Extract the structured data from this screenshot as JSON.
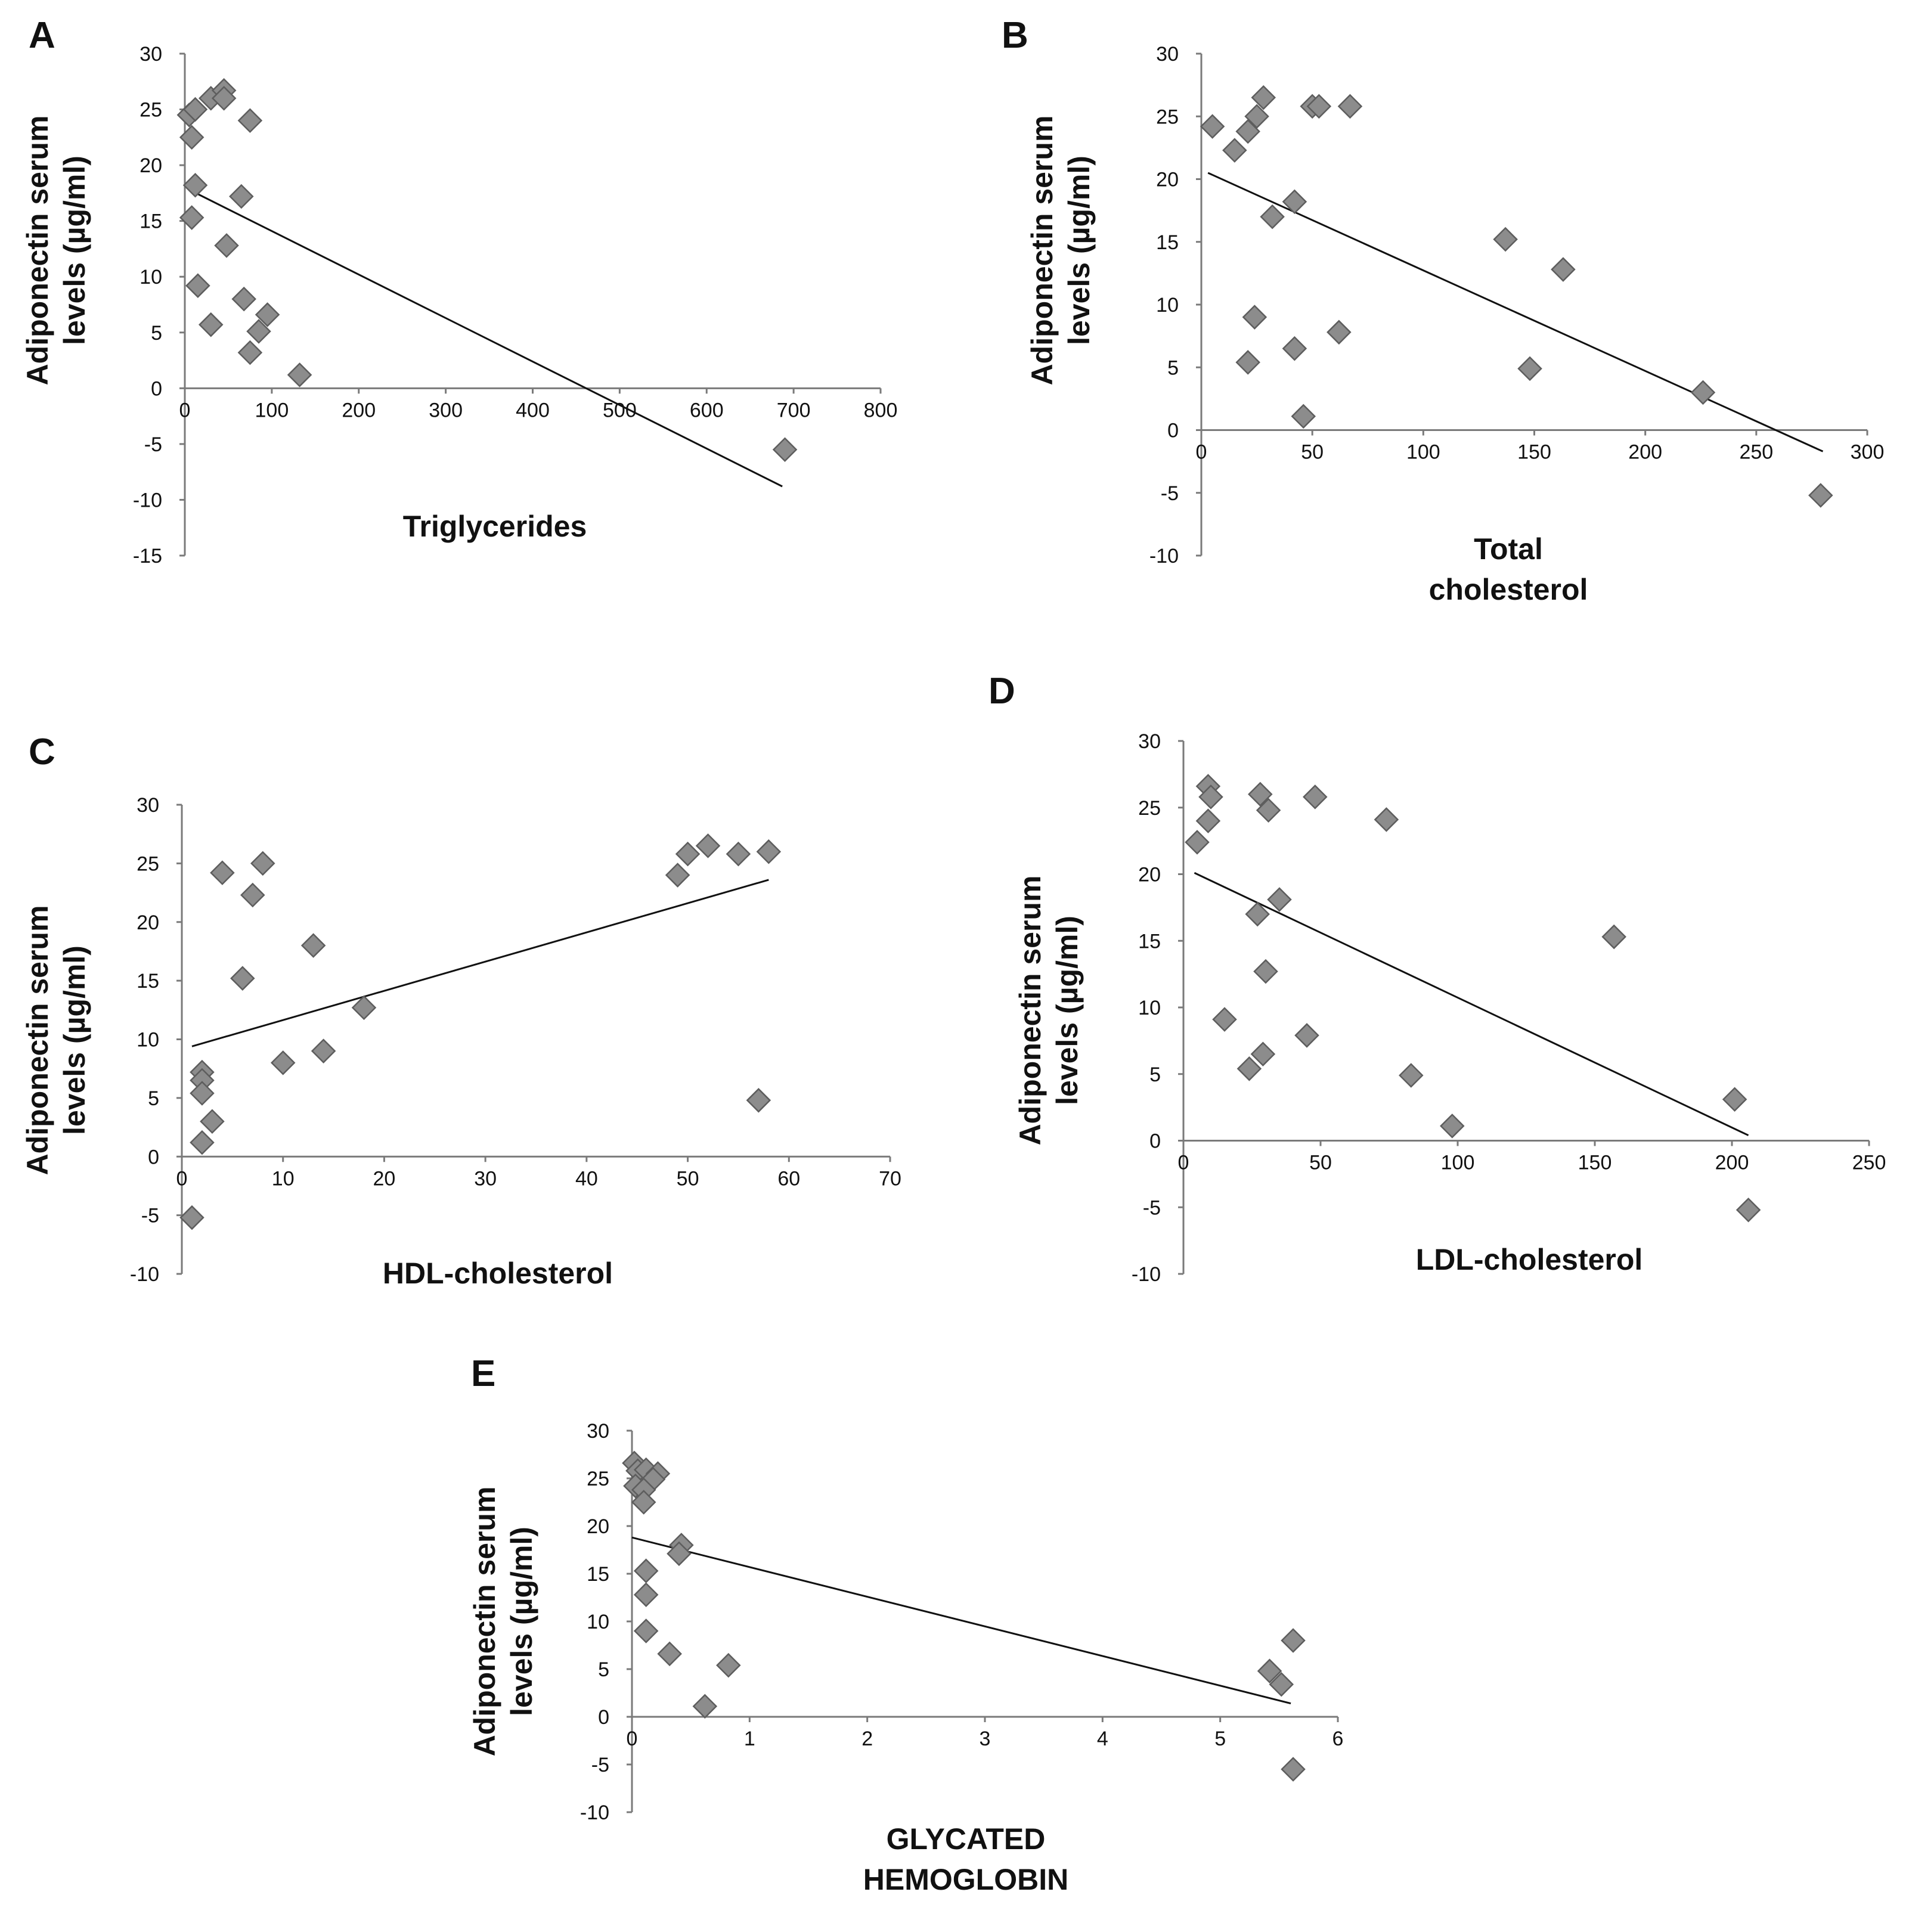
{
  "chart_data": [
    {
      "panel": "A",
      "type": "scatter",
      "title": "",
      "xlabel": [
        "Triglycerides"
      ],
      "ylabel": [
        "Adiponectin serum",
        "levels (µg/ml)"
      ],
      "xlim": [
        0,
        800
      ],
      "x_ticks": [
        0,
        100,
        200,
        300,
        400,
        500,
        600,
        700,
        800
      ],
      "ylim": [
        -15,
        30
      ],
      "y_ticks": [
        -15,
        -10,
        -5,
        0,
        5,
        10,
        15,
        20,
        25,
        30
      ],
      "points": [
        [
          5,
          24.5
        ],
        [
          12,
          25
        ],
        [
          30,
          26
        ],
        [
          45,
          26.7
        ],
        [
          45,
          26
        ],
        [
          75,
          24
        ],
        [
          8,
          22.5
        ],
        [
          12,
          18.2
        ],
        [
          65,
          17.2
        ],
        [
          8,
          15.3
        ],
        [
          48,
          12.8
        ],
        [
          15,
          9.2
        ],
        [
          68,
          8
        ],
        [
          95,
          6.6
        ],
        [
          30,
          5.7
        ],
        [
          85,
          5.1
        ],
        [
          75,
          3.2
        ],
        [
          132,
          1.2
        ],
        [
          690,
          -5.5
        ]
      ],
      "trendline": [
        [
          5,
          17.8
        ],
        [
          687,
          -8.8
        ]
      ],
      "point_color": "#8c8c8c"
    },
    {
      "panel": "B",
      "type": "scatter",
      "title": "",
      "xlabel": [
        "Total",
        "cholesterol"
      ],
      "ylabel": [
        "Adiponectin serum",
        "levels (µg/ml)"
      ],
      "xlim": [
        0,
        300
      ],
      "x_ticks": [
        0,
        50,
        100,
        150,
        200,
        250,
        300
      ],
      "ylim": [
        -10,
        30
      ],
      "y_ticks": [
        -10,
        -5,
        0,
        5,
        10,
        15,
        20,
        25,
        30
      ],
      "points": [
        [
          5,
          24.2
        ],
        [
          28,
          26.5
        ],
        [
          50,
          25.8
        ],
        [
          53,
          25.8
        ],
        [
          67,
          25.8
        ],
        [
          25,
          25
        ],
        [
          21,
          23.8
        ],
        [
          15,
          22.3
        ],
        [
          42,
          18.2
        ],
        [
          32,
          17
        ],
        [
          137,
          15.2
        ],
        [
          163,
          12.8
        ],
        [
          24,
          9
        ],
        [
          62,
          7.8
        ],
        [
          42,
          6.5
        ],
        [
          21,
          5.4
        ],
        [
          148,
          4.9
        ],
        [
          46,
          1.1
        ],
        [
          226,
          3
        ],
        [
          279,
          -5.2
        ]
      ],
      "trendline": [
        [
          3,
          20.5
        ],
        [
          280,
          -1.7
        ]
      ],
      "point_color": "#8c8c8c"
    },
    {
      "panel": "C",
      "type": "scatter",
      "title": "",
      "xlabel": [
        "HDL-cholesterol"
      ],
      "ylabel": [
        "Adiponectin serum",
        "levels (µg/ml)"
      ],
      "xlim": [
        0,
        70
      ],
      "x_ticks": [
        0,
        10,
        20,
        30,
        40,
        50,
        60,
        70
      ],
      "ylim": [
        -10,
        30
      ],
      "y_ticks": [
        -10,
        -5,
        0,
        5,
        10,
        15,
        20,
        25,
        30
      ],
      "points": [
        [
          4,
          24.2
        ],
        [
          8,
          25
        ],
        [
          7,
          22.3
        ],
        [
          13,
          18
        ],
        [
          6,
          15.2
        ],
        [
          18,
          12.7
        ],
        [
          14,
          9
        ],
        [
          10,
          8
        ],
        [
          2,
          7.2
        ],
        [
          2,
          6.5
        ],
        [
          2,
          5.4
        ],
        [
          3,
          3
        ],
        [
          2,
          1.2
        ],
        [
          1,
          -5.2
        ],
        [
          49,
          24
        ],
        [
          50,
          25.8
        ],
        [
          52,
          26.5
        ],
        [
          55,
          25.8
        ],
        [
          58,
          26
        ],
        [
          57,
          4.8
        ]
      ],
      "trendline": [
        [
          1,
          9.4
        ],
        [
          58,
          23.6
        ]
      ],
      "point_color": "#8c8c8c"
    },
    {
      "panel": "D",
      "type": "scatter",
      "title": "",
      "xlabel": [
        "LDL-cholesterol"
      ],
      "ylabel": [
        "Adiponectin serum",
        "levels (µg/ml)"
      ],
      "xlim": [
        0,
        250
      ],
      "x_ticks": [
        0,
        50,
        100,
        150,
        200,
        250
      ],
      "ylim": [
        -10,
        30
      ],
      "y_ticks": [
        -10,
        -5,
        0,
        5,
        10,
        15,
        20,
        25,
        30
      ],
      "points": [
        [
          9,
          26.6
        ],
        [
          10,
          25.8
        ],
        [
          28,
          26
        ],
        [
          31,
          24.8
        ],
        [
          48,
          25.8
        ],
        [
          74,
          24.1
        ],
        [
          9,
          24
        ],
        [
          5,
          22.4
        ],
        [
          35,
          18.1
        ],
        [
          27,
          17
        ],
        [
          157,
          15.3
        ],
        [
          30,
          12.7
        ],
        [
          15,
          9.1
        ],
        [
          45,
          7.9
        ],
        [
          29,
          6.5
        ],
        [
          24,
          5.4
        ],
        [
          83,
          4.9
        ],
        [
          98,
          1.1
        ],
        [
          201,
          3.1
        ],
        [
          206,
          -5.2
        ]
      ],
      "trendline": [
        [
          4,
          20.1
        ],
        [
          206,
          0.4
        ]
      ],
      "point_color": "#8c8c8c"
    },
    {
      "panel": "E",
      "type": "scatter",
      "title": "",
      "xlabel": [
        "GLYCATED",
        "HEMOGLOBIN"
      ],
      "ylabel": [
        "Adiponectin serum",
        "levels (µg/ml)"
      ],
      "xlim": [
        0,
        6
      ],
      "x_ticks": [
        0,
        1,
        2,
        3,
        4,
        5,
        6
      ],
      "ylim": [
        -10,
        30
      ],
      "y_ticks": [
        -10,
        -5,
        0,
        5,
        10,
        15,
        20,
        25,
        30
      ],
      "points": [
        [
          0.02,
          26.6
        ],
        [
          0.05,
          25.8
        ],
        [
          0.12,
          25.9
        ],
        [
          0.22,
          25.5
        ],
        [
          0.18,
          24.9
        ],
        [
          0.03,
          24.2
        ],
        [
          0.1,
          23.8
        ],
        [
          0.1,
          22.5
        ],
        [
          0.42,
          18
        ],
        [
          0.4,
          17.1
        ],
        [
          0.12,
          15.3
        ],
        [
          0.12,
          12.8
        ],
        [
          0.12,
          9
        ],
        [
          0.32,
          6.6
        ],
        [
          0.82,
          5.4
        ],
        [
          0.62,
          1.1
        ],
        [
          5.62,
          8.0
        ],
        [
          5.42,
          4.8
        ],
        [
          5.52,
          3.4
        ],
        [
          5.62,
          -5.5
        ]
      ],
      "trendline": [
        [
          0,
          18.8
        ],
        [
          5.6,
          1.4
        ]
      ],
      "point_color": "#8c8c8c"
    }
  ]
}
